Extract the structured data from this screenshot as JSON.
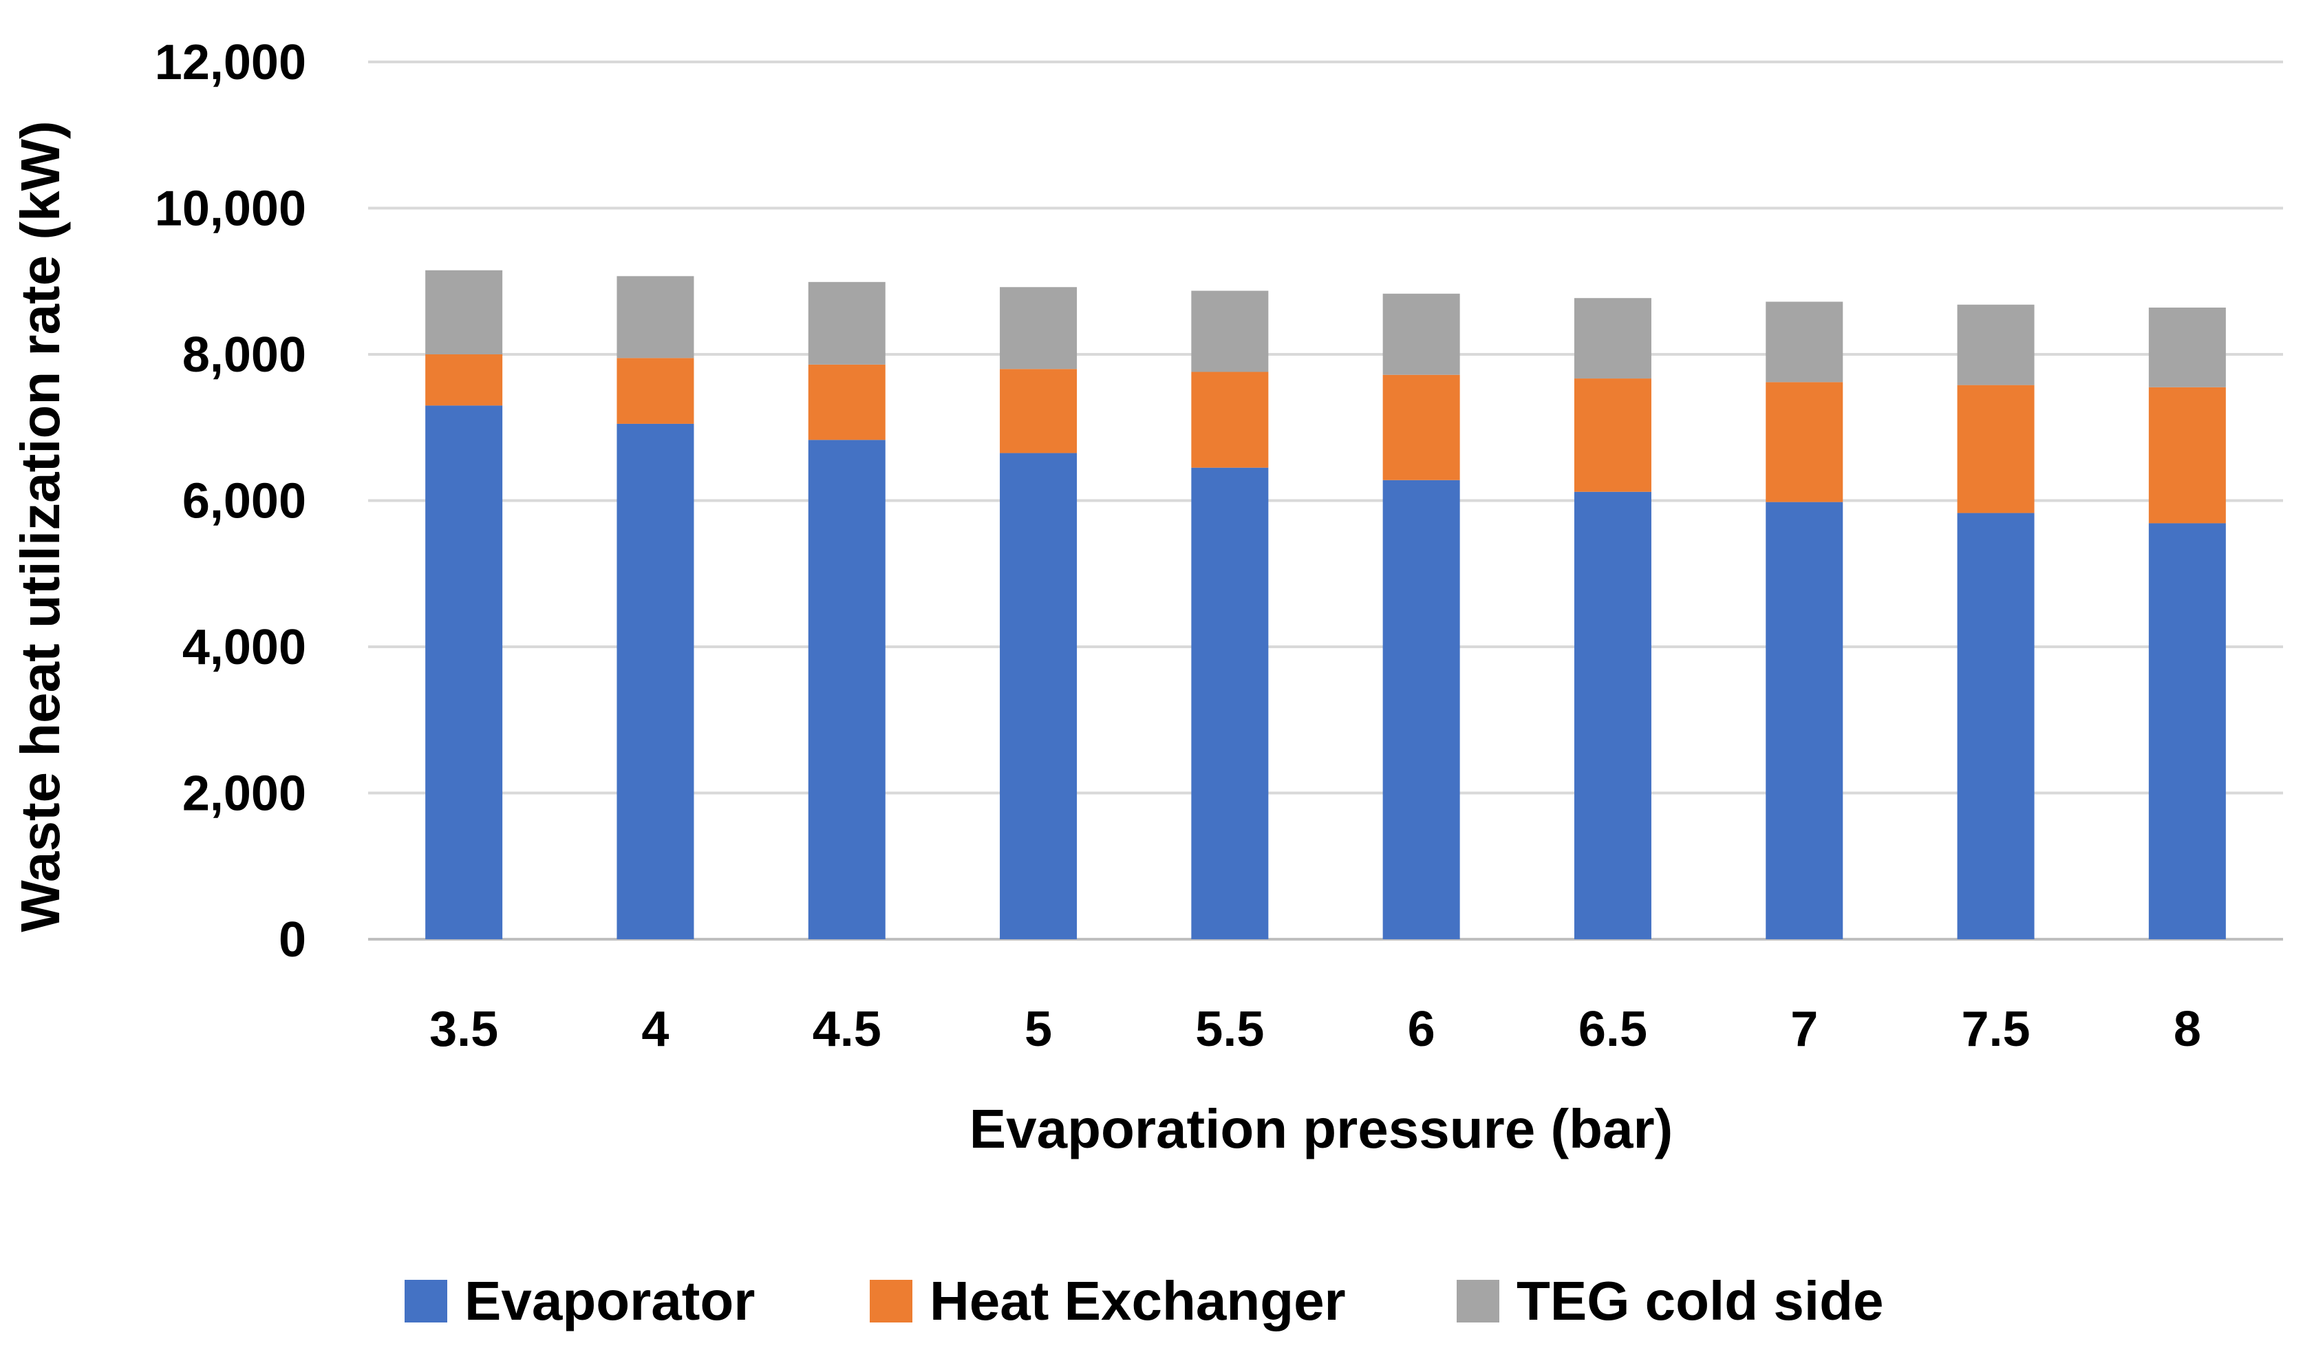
{
  "chart_data": {
    "type": "bar",
    "stacked": true,
    "title": "",
    "xlabel": "Evaporation pressure (bar)",
    "ylabel": "Waste heat utilization rate (kW)",
    "ylim": [
      0,
      12000
    ],
    "yticks": [
      0,
      2000,
      4000,
      6000,
      8000,
      10000,
      12000
    ],
    "ytick_labels": [
      "0",
      "2,000",
      "4,000",
      "6,000",
      "8,000",
      "10,000",
      "12,000"
    ],
    "grid": true,
    "legend_position": "bottom",
    "categories": [
      "3.5",
      "4",
      "4.5",
      "5",
      "5.5",
      "6",
      "6.5",
      "7",
      "7.5",
      "8"
    ],
    "series": [
      {
        "name": "Evaporator",
        "color": "#4472C4",
        "values": [
          7300,
          7050,
          6830,
          6650,
          6450,
          6280,
          6120,
          5980,
          5830,
          5690
        ]
      },
      {
        "name": "Heat Exchanger",
        "color": "#ED7D31",
        "values": [
          700,
          900,
          1030,
          1150,
          1310,
          1440,
          1550,
          1640,
          1750,
          1860
        ]
      },
      {
        "name": "TEG cold side",
        "color": "#A5A5A5",
        "values": [
          1150,
          1120,
          1130,
          1120,
          1110,
          1110,
          1100,
          1100,
          1100,
          1090
        ]
      }
    ]
  }
}
